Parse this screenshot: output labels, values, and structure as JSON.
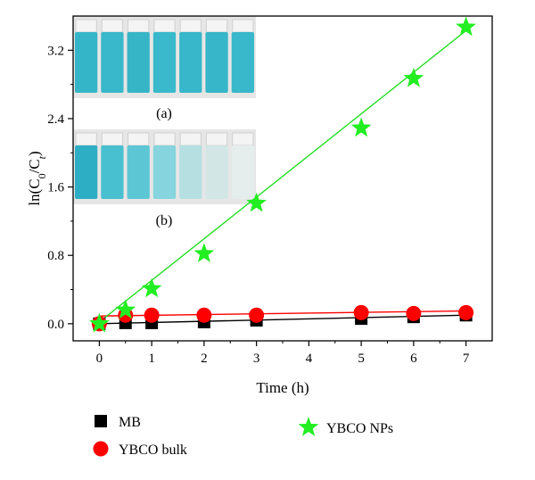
{
  "chart_data": {
    "type": "scatter",
    "xlabel": "Time (h)",
    "ylabel": "ln(C0/Ct)",
    "xlim": [
      -0.5,
      7.5
    ],
    "ylim": [
      -0.2,
      3.6
    ],
    "x_ticks": [
      "0",
      "1",
      "2",
      "3",
      "4",
      "5",
      "6",
      "7"
    ],
    "y_ticks": [
      "0.0",
      "0.8",
      "1.6",
      "2.4",
      "3.2"
    ],
    "legend_position": "bottom",
    "inset_labels": [
      "(a)",
      "(b)"
    ],
    "series": [
      {
        "name": "MB",
        "marker": "square",
        "color": "#000000",
        "x": [
          0,
          0.5,
          1,
          2,
          3,
          5,
          6,
          7
        ],
        "y": [
          0.0,
          0.01,
          0.01,
          0.02,
          0.04,
          0.06,
          0.08,
          0.1
        ],
        "fit": [
          [
            0,
            0.0
          ],
          [
            7,
            0.1
          ]
        ]
      },
      {
        "name": "YBCO bulk",
        "marker": "circle",
        "color": "#ff0000",
        "x": [
          0,
          0.5,
          1,
          2,
          3,
          5,
          6,
          7
        ],
        "y": [
          0.0,
          0.1,
          0.1,
          0.1,
          0.1,
          0.13,
          0.12,
          0.13
        ],
        "fit": [
          [
            0,
            0.09
          ],
          [
            7,
            0.15
          ]
        ]
      },
      {
        "name": "YBCO NPs",
        "marker": "star",
        "color": "#22ee22",
        "x": [
          0,
          0.5,
          1,
          2,
          3,
          5,
          6,
          7
        ],
        "y": [
          0.0,
          0.16,
          0.41,
          0.82,
          1.41,
          2.29,
          2.87,
          3.47
        ],
        "fit": [
          [
            0,
            0.02
          ],
          [
            7,
            3.43
          ]
        ]
      }
    ]
  }
}
